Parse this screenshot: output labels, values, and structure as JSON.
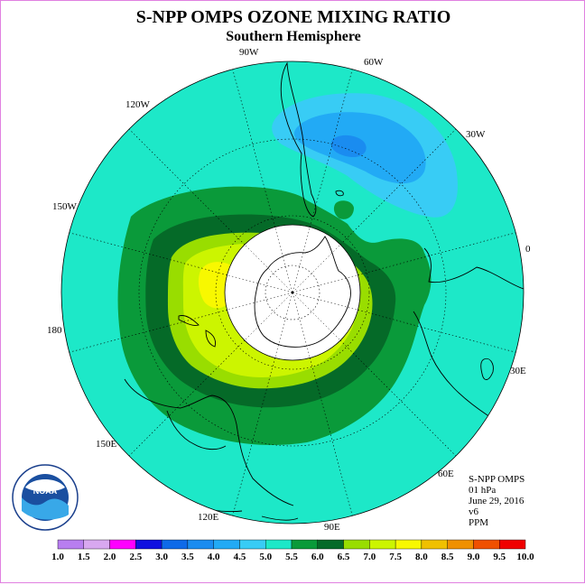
{
  "title": "S-NPP OMPS OZONE MIXING RATIO",
  "subtitle": "Southern Hemisphere",
  "longitude_labels": [
    "90W",
    "60W",
    "30W",
    "120W",
    "150W",
    "0",
    "180",
    "30E",
    "150E",
    "60E",
    "120E",
    "90E"
  ],
  "info": {
    "instrument": "S-NPP OMPS",
    "level": "01 hPa",
    "date": "June 29, 2016",
    "version": "v6",
    "units": "PPM"
  },
  "logo": {
    "name": "NOAA",
    "ring_text": "NATIONAL OCEANIC AND ATMOSPHERIC ADMINISTRATION · U.S. DEPARTMENT OF COMMERCE"
  },
  "colorbar": {
    "ticks": [
      "1.0",
      "1.5",
      "2.0",
      "2.5",
      "3.0",
      "3.5",
      "4.0",
      "4.5",
      "5.0",
      "5.5",
      "6.0",
      "6.5",
      "7.0",
      "7.5",
      "8.0",
      "8.5",
      "9.0",
      "9.5",
      "10.0"
    ],
    "colors": [
      "#b87ef0",
      "#d8a8f0",
      "#ff00ff",
      "#1010e0",
      "#0e6ae8",
      "#1a8cf0",
      "#22aaf5",
      "#38ccf5",
      "#1de8c8",
      "#0a9a3a",
      "#056a28",
      "#99dd00",
      "#ccf500",
      "#f8f800",
      "#f0c000",
      "#f09000",
      "#f05000",
      "#f00000",
      "#8b5a3a"
    ]
  },
  "field_colors": {
    "background_4.5_5.0": "#1de8c8",
    "band_5.0_5.5": "#0a9a3a",
    "band_5.5_6.0": "#056a28",
    "band_6.0_6.5": "#99dd00",
    "band_6.5_7.0": "#ccf500",
    "band_7.0_7.5": "#f8f800",
    "low_4.0_4.5": "#38ccf5",
    "low_3.5_4.0": "#22aaf5",
    "low_3.0_3.5": "#1a8cf0"
  }
}
